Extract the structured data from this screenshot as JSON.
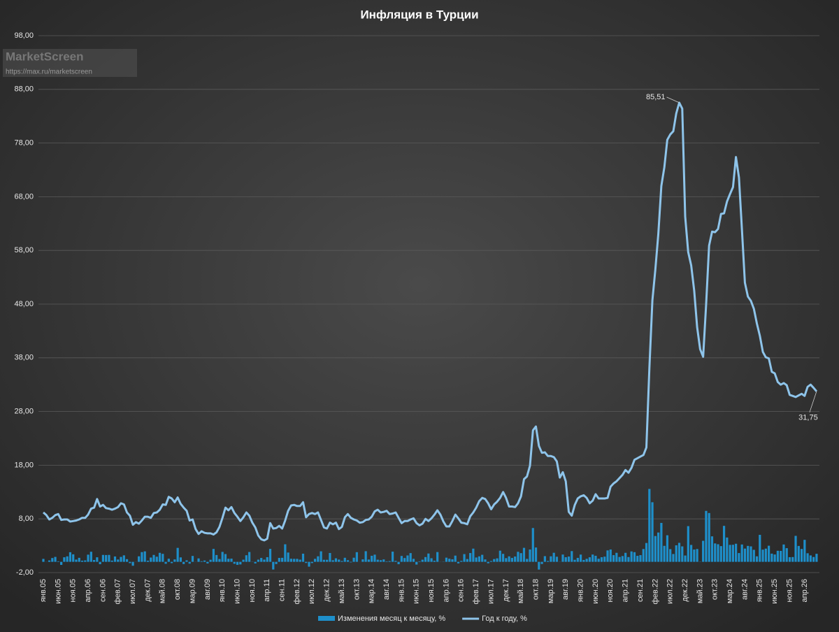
{
  "chart_data": {
    "type": "bar-line",
    "title": "Инфляция в Турции",
    "watermark": {
      "name": "MarketScreen",
      "url": "https://max.ru/marketscreen"
    },
    "categories": [
      "янв.05",
      null,
      null,
      null,
      null,
      "июн.05",
      null,
      null,
      null,
      null,
      "ноя.05",
      null,
      null,
      null,
      null,
      "апр.06",
      null,
      null,
      null,
      null,
      "сен.06",
      null,
      null,
      null,
      null,
      "фев.07",
      null,
      null,
      null,
      null,
      "июл.07",
      null,
      null,
      null,
      null,
      "дек.07",
      null,
      null,
      null,
      null,
      "май.08",
      null,
      null,
      null,
      null,
      "окт.08",
      null,
      null,
      null,
      null,
      "мар.09",
      null,
      null,
      null,
      null,
      "авг.09",
      null,
      null,
      null,
      null,
      "янв.10",
      null,
      null,
      null,
      null,
      "июн.10",
      null,
      null,
      null,
      null,
      "ноя.10",
      null,
      null,
      null,
      null,
      "апр.11",
      null,
      null,
      null,
      null,
      "сен.11",
      null,
      null,
      null,
      null,
      "фев.12",
      null,
      null,
      null,
      null,
      "июл.12",
      null,
      null,
      null,
      null,
      "дек.12",
      null,
      null,
      null,
      null,
      "май.13",
      null,
      null,
      null,
      null,
      "окт.13",
      null,
      null,
      null,
      null,
      "мар.14",
      null,
      null,
      null,
      null,
      "авг.14",
      null,
      null,
      null,
      null,
      "янв.15",
      null,
      null,
      null,
      null,
      "июн.15",
      null,
      null,
      null,
      null,
      "ноя.15",
      null,
      null,
      null,
      null,
      "апр.16",
      null,
      null,
      null,
      null,
      "сен.16",
      null,
      null,
      null,
      null,
      "фев.17",
      null,
      null,
      null,
      null,
      "июл.17",
      null,
      null,
      null,
      null,
      "дек.17",
      null,
      null,
      null,
      null,
      "май.18",
      null,
      null,
      null,
      null,
      "окт.18",
      null,
      null,
      null,
      null,
      "мар.19",
      null,
      null,
      null,
      null,
      "авг.19",
      null,
      null,
      null,
      null,
      "янв.20",
      null,
      null,
      null,
      null,
      "июн.20",
      null,
      null,
      null,
      null,
      "ноя.20",
      null,
      null,
      null,
      null,
      "апр.21",
      null,
      null,
      null,
      null,
      "сен.21",
      null,
      null,
      null,
      null,
      "фев.22",
      null,
      null,
      null,
      null,
      "июл.22",
      null,
      null,
      null,
      null,
      "дек.22",
      null,
      null,
      null,
      null,
      "май.23",
      null,
      null,
      null,
      null,
      "окт.23",
      null,
      null,
      null,
      null,
      "мар.24",
      null,
      null,
      null,
      null,
      "авг.24",
      null,
      null,
      null,
      null,
      "янв.25",
      null,
      null,
      null,
      null,
      "июн.25",
      null,
      null,
      null,
      null,
      "ноя.25",
      null,
      null,
      null,
      null,
      "апр.26",
      null,
      null,
      null,
      null
    ],
    "series": [
      {
        "name": "Изменения месяц к месяцу, %",
        "color": "#1e8fca",
        "kind": "bar",
        "values": [
          0.55,
          0.02,
          0.26,
          0.71,
          0.92,
          0.1,
          -0.57,
          0.85,
          1.02,
          1.79,
          1.4,
          0.42,
          0.75,
          0.22,
          0.27,
          1.34,
          1.88,
          0.34,
          0.85,
          -0.44,
          1.29,
          1.27,
          1.29,
          0.23,
          1.0,
          0.43,
          0.92,
          1.21,
          0.5,
          -0.24,
          -0.73,
          0.02,
          1.03,
          1.81,
          1.95,
          0.22,
          0.8,
          1.29,
          0.96,
          1.68,
          1.49,
          -0.36,
          0.58,
          -0.24,
          0.45,
          2.6,
          0.83,
          -0.41,
          0.29,
          -0.34,
          1.1,
          0.02,
          0.64,
          0.11,
          0.25,
          -0.3,
          0.39,
          2.41,
          1.27,
          0.53,
          1.85,
          1.45,
          0.58,
          0.6,
          -0.36,
          -0.56,
          -0.48,
          0.4,
          1.23,
          1.83,
          0.03,
          -0.3,
          0.41,
          0.73,
          0.42,
          0.87,
          2.42,
          -1.43,
          -0.41,
          0.73,
          0.75,
          3.27,
          1.73,
          0.58,
          0.56,
          0.56,
          0.41,
          1.52,
          -0.21,
          -0.9,
          -0.23,
          0.56,
          1.03,
          1.96,
          0.38,
          0.38,
          1.65,
          0.3,
          0.66,
          0.42,
          0.15,
          0.76,
          0.31,
          -0.1,
          0.77,
          1.8,
          0.01,
          0.46,
          1.98,
          0.43,
          1.13,
          1.34,
          0.4,
          0.31,
          0.45,
          0.09,
          0.14,
          1.9,
          0.18,
          -0.44,
          1.1,
          0.71,
          1.19,
          1.63,
          0.56,
          -0.51,
          0.09,
          0.4,
          0.89,
          1.55,
          0.67,
          0.21,
          1.82,
          -0.02,
          -0.04,
          0.78,
          0.58,
          0.47,
          1.16,
          -0.29,
          0.18,
          1.44,
          0.52,
          1.64,
          2.46,
          0.81,
          1.02,
          1.31,
          0.45,
          -0.27,
          0.15,
          0.52,
          0.65,
          2.08,
          1.49,
          0.69,
          1.02,
          0.73,
          0.99,
          1.87,
          1.62,
          2.61,
          0.55,
          2.3,
          6.3,
          2.67,
          -1.44,
          -0.4,
          1.06,
          0.16,
          1.03,
          1.69,
          0.95,
          0.03,
          1.36,
          0.86,
          0.99,
          2.0,
          0.38,
          0.74,
          1.35,
          0.35,
          0.57,
          0.85,
          1.36,
          1.13,
          0.58,
          0.86,
          0.97,
          2.13,
          2.3,
          1.25,
          1.68,
          0.91,
          1.08,
          1.68,
          0.89,
          1.94,
          1.8,
          1.12,
          1.25,
          2.39,
          3.51,
          13.58,
          11.1,
          4.81,
          5.46,
          7.25,
          2.98,
          4.95,
          2.37,
          1.46,
          3.08,
          3.54,
          2.88,
          1.18,
          6.65,
          3.15,
          2.29,
          2.39,
          0.04,
          3.92,
          9.49,
          9.09,
          4.75,
          3.43,
          3.28,
          2.93,
          6.7,
          4.53,
          3.16,
          3.18,
          3.37,
          1.64,
          3.23,
          2.47,
          2.97,
          2.88,
          2.24,
          1.03,
          5.03,
          2.27,
          2.46,
          3.0,
          1.53,
          1.37,
          2.06,
          2.04,
          3.23,
          2.55,
          0.87,
          0.89,
          4.84,
          2.96,
          2.4,
          4.1,
          1.6,
          1.2,
          0.9,
          1.5
        ]
      },
      {
        "name": "Год к году, %",
        "color": "#8ec4ea",
        "kind": "line",
        "values": [
          9.2,
          8.7,
          7.9,
          8.2,
          8.7,
          8.9,
          7.8,
          7.9,
          7.9,
          7.5,
          7.6,
          7.7,
          7.9,
          8.2,
          8.2,
          8.8,
          9.9,
          10.1,
          11.7,
          10.3,
          10.6,
          10.0,
          9.9,
          9.7,
          9.9,
          10.2,
          10.9,
          10.7,
          9.2,
          8.6,
          6.9,
          7.4,
          7.1,
          7.7,
          8.4,
          8.4,
          8.2,
          9.1,
          9.2,
          9.7,
          10.7,
          10.6,
          12.1,
          11.8,
          11.1,
          12.0,
          10.8,
          10.1,
          9.5,
          7.7,
          7.9,
          6.1,
          5.2,
          5.7,
          5.4,
          5.3,
          5.3,
          5.1,
          5.5,
          6.5,
          8.2,
          10.1,
          9.6,
          10.2,
          9.1,
          8.4,
          7.6,
          8.3,
          9.2,
          8.6,
          7.3,
          6.4,
          4.9,
          4.2,
          4.0,
          4.3,
          7.2,
          6.2,
          6.3,
          6.7,
          6.2,
          7.7,
          9.5,
          10.5,
          10.6,
          10.4,
          10.4,
          11.1,
          8.3,
          8.9,
          9.1,
          8.9,
          9.2,
          7.8,
          6.4,
          6.2,
          7.3,
          7.0,
          7.3,
          6.1,
          6.5,
          8.3,
          8.9,
          8.2,
          7.9,
          7.7,
          7.3,
          7.4,
          7.8,
          7.9,
          8.4,
          9.4,
          9.7,
          9.2,
          9.3,
          9.5,
          8.9,
          9.0,
          9.2,
          8.2,
          7.2,
          7.6,
          7.6,
          7.9,
          8.1,
          7.2,
          6.8,
          7.1,
          8.0,
          7.6,
          8.1,
          8.8,
          9.6,
          8.8,
          7.5,
          6.6,
          6.6,
          7.6,
          8.8,
          8.1,
          7.3,
          7.2,
          7.0,
          8.5,
          9.2,
          10.1,
          11.3,
          11.9,
          11.7,
          10.9,
          9.8,
          10.7,
          11.2,
          11.9,
          13.0,
          11.9,
          10.3,
          10.3,
          10.2,
          10.9,
          12.2,
          15.4,
          15.9,
          17.9,
          24.5,
          25.2,
          21.6,
          20.3,
          20.4,
          19.7,
          19.7,
          19.5,
          18.7,
          15.7,
          16.7,
          15.0,
          9.3,
          8.6,
          10.6,
          11.8,
          12.2,
          12.4,
          11.9,
          10.9,
          11.4,
          12.6,
          11.8,
          11.8,
          11.8,
          11.9,
          14.0,
          14.6,
          15.0,
          15.6,
          16.2,
          17.1,
          16.6,
          17.5,
          19.0,
          19.3,
          19.6,
          19.9,
          21.3,
          36.1,
          48.7,
          54.4,
          61.1,
          70.0,
          73.5,
          78.6,
          79.6,
          80.2,
          83.5,
          85.51,
          84.4,
          64.3,
          57.7,
          55.2,
          50.5,
          43.7,
          39.6,
          38.2,
          47.8,
          58.9,
          61.5,
          61.4,
          62.0,
          64.8,
          64.9,
          67.1,
          68.5,
          69.8,
          75.4,
          71.6,
          61.8,
          52.0,
          49.4,
          48.6,
          47.1,
          44.4,
          42.1,
          39.1,
          38.1,
          37.9,
          35.4,
          35.1,
          33.5,
          33.0,
          33.3,
          32.9,
          31.1,
          30.9,
          30.7,
          31.0,
          31.3,
          30.9,
          32.6,
          33.0,
          32.4,
          31.75
        ]
      }
    ],
    "annotations": [
      {
        "label": "85,51",
        "value": 85.51
      },
      {
        "label": "31,75",
        "value": 31.75
      }
    ],
    "ylim": [
      -2,
      98
    ],
    "yticks": [
      {
        "value": -2,
        "label": "-2,00"
      },
      {
        "value": 8,
        "label": "8,00"
      },
      {
        "value": 18,
        "label": "18,00"
      },
      {
        "value": 28,
        "label": "28,00"
      },
      {
        "value": 38,
        "label": "38,00"
      },
      {
        "value": 48,
        "label": "48,00"
      },
      {
        "value": 58,
        "label": "58,00"
      },
      {
        "value": 68,
        "label": "68,00"
      },
      {
        "value": 78,
        "label": "78,00"
      },
      {
        "value": 88,
        "label": "88,00"
      },
      {
        "value": 98,
        "label": "98,00"
      }
    ],
    "grid": true,
    "legend": "bottom"
  }
}
